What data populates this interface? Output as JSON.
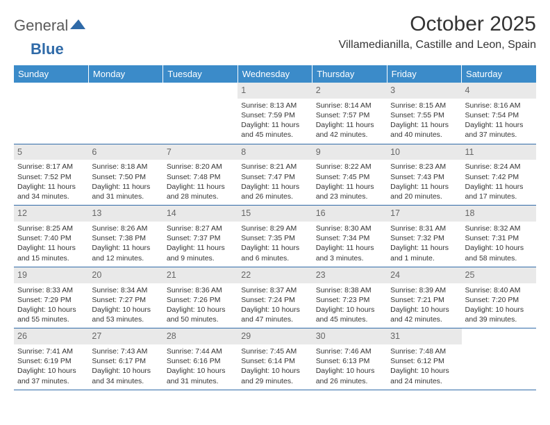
{
  "logo": {
    "part1": "General",
    "part2": "Blue",
    "triangle_color": "#2f6aa8"
  },
  "title": "October 2025",
  "location": "Villamedianilla, Castille and Leon, Spain",
  "header_bg": "#3b8bc9",
  "header_fg": "#ffffff",
  "daynum_bg": "#e9e9e9",
  "border_color": "#2f6aa8",
  "day_headers": [
    "Sunday",
    "Monday",
    "Tuesday",
    "Wednesday",
    "Thursday",
    "Friday",
    "Saturday"
  ],
  "weeks": [
    [
      {
        "num": "",
        "sunrise": "",
        "sunset": "",
        "daylight": ""
      },
      {
        "num": "",
        "sunrise": "",
        "sunset": "",
        "daylight": ""
      },
      {
        "num": "",
        "sunrise": "",
        "sunset": "",
        "daylight": ""
      },
      {
        "num": "1",
        "sunrise": "Sunrise: 8:13 AM",
        "sunset": "Sunset: 7:59 PM",
        "daylight": "Daylight: 11 hours and 45 minutes."
      },
      {
        "num": "2",
        "sunrise": "Sunrise: 8:14 AM",
        "sunset": "Sunset: 7:57 PM",
        "daylight": "Daylight: 11 hours and 42 minutes."
      },
      {
        "num": "3",
        "sunrise": "Sunrise: 8:15 AM",
        "sunset": "Sunset: 7:55 PM",
        "daylight": "Daylight: 11 hours and 40 minutes."
      },
      {
        "num": "4",
        "sunrise": "Sunrise: 8:16 AM",
        "sunset": "Sunset: 7:54 PM",
        "daylight": "Daylight: 11 hours and 37 minutes."
      }
    ],
    [
      {
        "num": "5",
        "sunrise": "Sunrise: 8:17 AM",
        "sunset": "Sunset: 7:52 PM",
        "daylight": "Daylight: 11 hours and 34 minutes."
      },
      {
        "num": "6",
        "sunrise": "Sunrise: 8:18 AM",
        "sunset": "Sunset: 7:50 PM",
        "daylight": "Daylight: 11 hours and 31 minutes."
      },
      {
        "num": "7",
        "sunrise": "Sunrise: 8:20 AM",
        "sunset": "Sunset: 7:48 PM",
        "daylight": "Daylight: 11 hours and 28 minutes."
      },
      {
        "num": "8",
        "sunrise": "Sunrise: 8:21 AM",
        "sunset": "Sunset: 7:47 PM",
        "daylight": "Daylight: 11 hours and 26 minutes."
      },
      {
        "num": "9",
        "sunrise": "Sunrise: 8:22 AM",
        "sunset": "Sunset: 7:45 PM",
        "daylight": "Daylight: 11 hours and 23 minutes."
      },
      {
        "num": "10",
        "sunrise": "Sunrise: 8:23 AM",
        "sunset": "Sunset: 7:43 PM",
        "daylight": "Daylight: 11 hours and 20 minutes."
      },
      {
        "num": "11",
        "sunrise": "Sunrise: 8:24 AM",
        "sunset": "Sunset: 7:42 PM",
        "daylight": "Daylight: 11 hours and 17 minutes."
      }
    ],
    [
      {
        "num": "12",
        "sunrise": "Sunrise: 8:25 AM",
        "sunset": "Sunset: 7:40 PM",
        "daylight": "Daylight: 11 hours and 15 minutes."
      },
      {
        "num": "13",
        "sunrise": "Sunrise: 8:26 AM",
        "sunset": "Sunset: 7:38 PM",
        "daylight": "Daylight: 11 hours and 12 minutes."
      },
      {
        "num": "14",
        "sunrise": "Sunrise: 8:27 AM",
        "sunset": "Sunset: 7:37 PM",
        "daylight": "Daylight: 11 hours and 9 minutes."
      },
      {
        "num": "15",
        "sunrise": "Sunrise: 8:29 AM",
        "sunset": "Sunset: 7:35 PM",
        "daylight": "Daylight: 11 hours and 6 minutes."
      },
      {
        "num": "16",
        "sunrise": "Sunrise: 8:30 AM",
        "sunset": "Sunset: 7:34 PM",
        "daylight": "Daylight: 11 hours and 3 minutes."
      },
      {
        "num": "17",
        "sunrise": "Sunrise: 8:31 AM",
        "sunset": "Sunset: 7:32 PM",
        "daylight": "Daylight: 11 hours and 1 minute."
      },
      {
        "num": "18",
        "sunrise": "Sunrise: 8:32 AM",
        "sunset": "Sunset: 7:31 PM",
        "daylight": "Daylight: 10 hours and 58 minutes."
      }
    ],
    [
      {
        "num": "19",
        "sunrise": "Sunrise: 8:33 AM",
        "sunset": "Sunset: 7:29 PM",
        "daylight": "Daylight: 10 hours and 55 minutes."
      },
      {
        "num": "20",
        "sunrise": "Sunrise: 8:34 AM",
        "sunset": "Sunset: 7:27 PM",
        "daylight": "Daylight: 10 hours and 53 minutes."
      },
      {
        "num": "21",
        "sunrise": "Sunrise: 8:36 AM",
        "sunset": "Sunset: 7:26 PM",
        "daylight": "Daylight: 10 hours and 50 minutes."
      },
      {
        "num": "22",
        "sunrise": "Sunrise: 8:37 AM",
        "sunset": "Sunset: 7:24 PM",
        "daylight": "Daylight: 10 hours and 47 minutes."
      },
      {
        "num": "23",
        "sunrise": "Sunrise: 8:38 AM",
        "sunset": "Sunset: 7:23 PM",
        "daylight": "Daylight: 10 hours and 45 minutes."
      },
      {
        "num": "24",
        "sunrise": "Sunrise: 8:39 AM",
        "sunset": "Sunset: 7:21 PM",
        "daylight": "Daylight: 10 hours and 42 minutes."
      },
      {
        "num": "25",
        "sunrise": "Sunrise: 8:40 AM",
        "sunset": "Sunset: 7:20 PM",
        "daylight": "Daylight: 10 hours and 39 minutes."
      }
    ],
    [
      {
        "num": "26",
        "sunrise": "Sunrise: 7:41 AM",
        "sunset": "Sunset: 6:19 PM",
        "daylight": "Daylight: 10 hours and 37 minutes."
      },
      {
        "num": "27",
        "sunrise": "Sunrise: 7:43 AM",
        "sunset": "Sunset: 6:17 PM",
        "daylight": "Daylight: 10 hours and 34 minutes."
      },
      {
        "num": "28",
        "sunrise": "Sunrise: 7:44 AM",
        "sunset": "Sunset: 6:16 PM",
        "daylight": "Daylight: 10 hours and 31 minutes."
      },
      {
        "num": "29",
        "sunrise": "Sunrise: 7:45 AM",
        "sunset": "Sunset: 6:14 PM",
        "daylight": "Daylight: 10 hours and 29 minutes."
      },
      {
        "num": "30",
        "sunrise": "Sunrise: 7:46 AM",
        "sunset": "Sunset: 6:13 PM",
        "daylight": "Daylight: 10 hours and 26 minutes."
      },
      {
        "num": "31",
        "sunrise": "Sunrise: 7:48 AM",
        "sunset": "Sunset: 6:12 PM",
        "daylight": "Daylight: 10 hours and 24 minutes."
      },
      {
        "num": "",
        "sunrise": "",
        "sunset": "",
        "daylight": ""
      }
    ]
  ]
}
